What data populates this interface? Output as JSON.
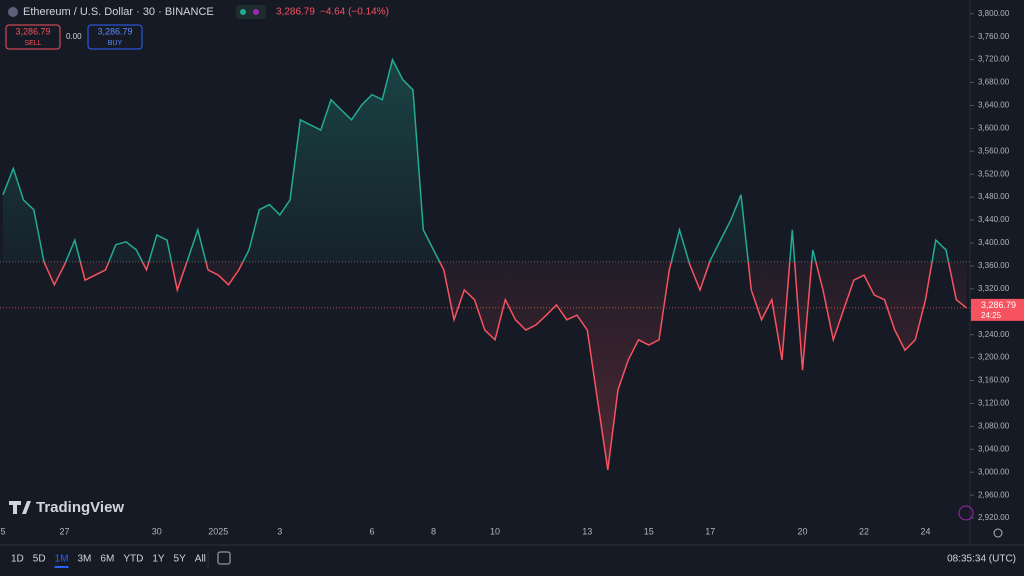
{
  "chart_data": {
    "type": "baseline",
    "title": "Ethereum / U.S. Dollar · 30 · BINANCE",
    "last_price": {
      "value": 3286.79,
      "label": "3,286.79"
    },
    "change_label": "−4.64 (−0.14%)",
    "countdown": "24:25",
    "baseline": 3367,
    "up_color": "#22ab94",
    "down_color": "#f7525f",
    "categories": [
      "5",
      null,
      null,
      null,
      null,
      null,
      "27",
      null,
      null,
      null,
      null,
      null,
      null,
      null,
      null,
      "30",
      null,
      null,
      null,
      null,
      null,
      "2025",
      null,
      null,
      null,
      null,
      null,
      "3",
      null,
      null,
      null,
      null,
      null,
      null,
      null,
      null,
      "6",
      null,
      null,
      null,
      null,
      null,
      "8",
      null,
      null,
      null,
      null,
      null,
      "10",
      null,
      null,
      null,
      null,
      null,
      null,
      null,
      null,
      "13",
      null,
      null,
      null,
      null,
      null,
      "15",
      null,
      null,
      null,
      null,
      null,
      "17",
      null,
      null,
      null,
      null,
      null,
      null,
      null,
      null,
      "20",
      null,
      null,
      null,
      null,
      null,
      "22",
      null,
      null,
      null,
      null,
      null,
      "24",
      null,
      null,
      null,
      null
    ],
    "values": [
      3484,
      3530,
      3475,
      3458,
      3367,
      3327,
      3362,
      3405,
      3335,
      3344,
      3353,
      3397,
      3402,
      3388,
      3353,
      3414,
      3405,
      3318,
      3370,
      3423,
      3353,
      3344,
      3327,
      3353,
      3388,
      3458,
      3467,
      3449,
      3475,
      3615,
      3606,
      3597,
      3650,
      3632,
      3615,
      3641,
      3659,
      3650,
      3720,
      3685,
      3667,
      3423,
      3388,
      3353,
      3266,
      3318,
      3301,
      3248,
      3231,
      3301,
      3266,
      3248,
      3257,
      3274,
      3292,
      3266,
      3274,
      3248,
      3126,
      3004,
      3144,
      3196,
      3231,
      3222,
      3231,
      3353,
      3423,
      3362,
      3318,
      3370,
      3405,
      3440,
      3484,
      3318,
      3266,
      3301,
      3196,
      3423,
      3178,
      3388,
      3318,
      3231,
      3283,
      3335,
      3344,
      3309,
      3301,
      3248,
      3213,
      3231,
      3301,
      3405,
      3388,
      3301,
      3286.79
    ],
    "ylim": [
      2873,
      3824
    ],
    "yticks": [
      {
        "value": 3800,
        "label": "3,800.00"
      },
      {
        "value": 3760,
        "label": "3,760.00"
      },
      {
        "value": 3720,
        "label": "3,720.00"
      },
      {
        "value": 3680,
        "label": "3,680.00"
      },
      {
        "value": 3640,
        "label": "3,640.00"
      },
      {
        "value": 3600,
        "label": "3,600.00"
      },
      {
        "value": 3560,
        "label": "3,560.00"
      },
      {
        "value": 3520,
        "label": "3,520.00"
      },
      {
        "value": 3480,
        "label": "3,480.00"
      },
      {
        "value": 3440,
        "label": "3,440.00"
      },
      {
        "value": 3400,
        "label": "3,400.00"
      },
      {
        "value": 3360,
        "label": "3,360.00"
      },
      {
        "value": 3320,
        "label": "3,320.00"
      },
      {
        "value": 3280,
        "label": "3,280.00"
      },
      {
        "value": 3240,
        "label": "3,240.00"
      },
      {
        "value": 3200,
        "label": "3,200.00"
      },
      {
        "value": 3160,
        "label": "3,160.00"
      },
      {
        "value": 3120,
        "label": "3,120.00"
      },
      {
        "value": 3080,
        "label": "3,080.00"
      },
      {
        "value": 3040,
        "label": "3,040.00"
      },
      {
        "value": 3000,
        "label": "3,000.00"
      },
      {
        "value": 2960,
        "label": "2,960.00"
      },
      {
        "value": 2920,
        "label": "2,920.00"
      }
    ]
  },
  "ui": {
    "sell_price": "3,286.79",
    "sell": "SELL",
    "spread": "0.00",
    "buy_price": "3,286.79",
    "buy": "BUY",
    "logo": "TradingView",
    "ranges": [
      "1D",
      "5D",
      "1M",
      "3M",
      "6M",
      "YTD",
      "1Y",
      "5Y",
      "All"
    ],
    "clock": "08:35:34 (UTC)"
  }
}
